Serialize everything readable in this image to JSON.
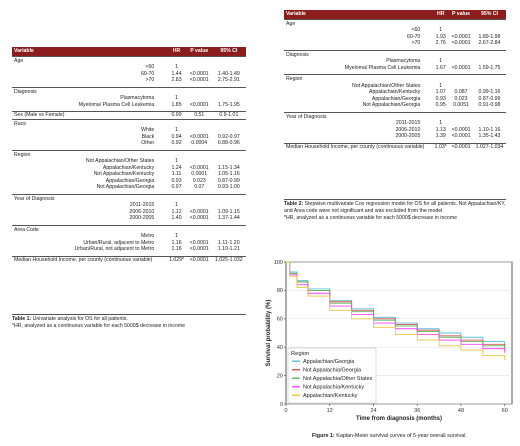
{
  "table1": {
    "headers": [
      "Variable",
      "HR",
      "P value",
      "95% CI"
    ],
    "sections": [
      {
        "title": "Age",
        "rows": [
          [
            "<60",
            "1",
            "",
            ""
          ],
          [
            "60-70",
            "1.44",
            "<0.0001",
            "1.40-1.49"
          ],
          [
            ">70",
            "2.83",
            "<0.0001",
            "2.75-2.91"
          ]
        ]
      },
      {
        "title": "Diagnosis",
        "rows": [
          [
            "Plasmacytoma",
            "1",
            "",
            ""
          ],
          [
            "Myeloma/ Plasma Cell Leukemia",
            "1.85",
            "<0.0001",
            "1.75-1.95"
          ]
        ]
      },
      {
        "title": "Sex (Male vs Female)",
        "title_values": [
          "0.99",
          "0.51",
          "0.9-1.01"
        ],
        "rows": []
      },
      {
        "title": "Race",
        "rows": [
          [
            "White",
            "1",
            "",
            ""
          ],
          [
            "Black",
            "0.94",
            "<0.0001",
            "0.92-0.97"
          ],
          [
            "Other",
            "0.92",
            "0.0004",
            "0.88-0.96"
          ]
        ]
      },
      {
        "title": "Region",
        "rows": [
          [
            "Not Appalachian/Other States",
            "1",
            "",
            ""
          ],
          [
            "Appalachian/Kentucky",
            "1.24",
            "<0.0001",
            "1.15-1.34"
          ],
          [
            "Not Appalachian/Kentucky",
            "1.11",
            "0.0001",
            "1.05-1.16"
          ],
          [
            "Appalachian/Georgia",
            "0.93",
            "0.023",
            "0.87-0.99"
          ],
          [
            "Not Appalachian/Georgia",
            "0.97",
            "0.07",
            "0.93-1.00"
          ]
        ]
      },
      {
        "title": "Year of Diagnosis",
        "rows": [
          [
            "2011-2015",
            "1",
            "",
            ""
          ],
          [
            "2006-2010",
            "1.12",
            "<0.0001",
            "1.09-1.15"
          ],
          [
            "2000-2005",
            "1.40",
            "<0.0001",
            "1.37-1.44"
          ]
        ]
      },
      {
        "title": "Area Code",
        "rows": [
          [
            "Metro",
            "1",
            "",
            ""
          ],
          [
            "Urban/Rural, adjacent to Metro",
            "1.16",
            "<0.0001",
            "1.11-1.20"
          ],
          [
            "Urban/Rural, not adjacent to Metro",
            "1.16",
            "<0.0001",
            "1.10-1.21"
          ]
        ]
      },
      {
        "title": "Median Household Income, per county (continuous variable)",
        "title_values": [
          "1.029*",
          "<0.0001",
          "1.025-1.032"
        ],
        "rows": []
      }
    ],
    "caption_label": "Table 1:",
    "caption_text": " Univariate analysis for OS for all patients.",
    "caption_note": "*HR, analyzed as a continuous variable for each 5000$ decrease in income"
  },
  "table2": {
    "headers": [
      "Variable",
      "HR",
      "P value",
      "95% CI"
    ],
    "sections": [
      {
        "title": "Age",
        "rows": [
          [
            "<60",
            "1",
            "",
            ""
          ],
          [
            "60-70",
            "1.93",
            "<0.0001",
            "1.89-1.98"
          ],
          [
            ">70",
            "2.76",
            "<0.0001",
            "2.67-2.84"
          ]
        ]
      },
      {
        "title": "Diagnosis",
        "rows": [
          [
            "Plasmacytoma",
            "1",
            "",
            ""
          ],
          [
            "Myeloma/ Plasma Cell Leukemia",
            "1.67",
            "<0.0001",
            "1.59-1.75"
          ]
        ]
      },
      {
        "title": "Region",
        "rows": [
          [
            "Not Appalachian/Other States",
            "1",
            "",
            ""
          ],
          [
            "Appalachian/Kentucky",
            "1.07",
            "0.087",
            "0.99-1.16"
          ],
          [
            "Appalachian/Georgia",
            "0.93",
            "0.023",
            "0.87-0.99"
          ],
          [
            "Not Appalachian/Georgia",
            "0.95",
            "0.0051",
            "0.91-0.98"
          ]
        ]
      },
      {
        "title": "Year of Diagnosis",
        "rows": [
          [
            "2011-2015",
            "1",
            "",
            ""
          ],
          [
            "2006-2010",
            "1.13",
            "<0.0001",
            "1.10-1.16"
          ],
          [
            "2000-2005",
            "1.39",
            "<0.0001",
            "1.35-1.43"
          ]
        ]
      },
      {
        "title": "Median Household Income, per county (continuous variable)",
        "title_values": [
          "1.03*",
          "<0.0001",
          "1.027-1.034"
        ],
        "rows": []
      }
    ],
    "caption_label": "Table 2:",
    "caption_text": " Stepwise multivariate Cox regression model for OS for all patients. Not Appalachian/KY, and Area code were not significant and was excluded from the model.",
    "caption_note": "*HR, analyzed as a continuous variable for each 5000$ decrease in income"
  },
  "figure": {
    "caption_label": "Figure 1:",
    "caption_text": " Kaplan-Meier survival curves of 5-year overall survival"
  },
  "chart_data": {
    "type": "line",
    "xlabel": "Time from diagnosis (months)",
    "ylabel": "Survival probability (%)",
    "xlim": [
      0,
      62
    ],
    "ylim": [
      0,
      100
    ],
    "xticks": [
      0,
      12,
      24,
      36,
      48,
      60
    ],
    "yticks": [
      0,
      20,
      40,
      60,
      80,
      100
    ],
    "legend_title": "Region",
    "legend_position": "bottom-left",
    "x": [
      0,
      1,
      3,
      6,
      12,
      18,
      24,
      30,
      36,
      42,
      48,
      54,
      60
    ],
    "series": [
      {
        "name": "Appalachian/Georgia",
        "color": "#5bc0de",
        "values": [
          100,
          93,
          87,
          81,
          73,
          67,
          61,
          57,
          53,
          50,
          47,
          44,
          41
        ]
      },
      {
        "name": "Not Appalachia/Georgia",
        "color": "#d9534f",
        "values": [
          100,
          92,
          86,
          80,
          72,
          66,
          60,
          56,
          52,
          48,
          45,
          42,
          39
        ]
      },
      {
        "name": "Not Appalachia/Other States",
        "color": "#5cb85c",
        "values": [
          100,
          92,
          86,
          80,
          71,
          65,
          59,
          55,
          51,
          47,
          44,
          41,
          38
        ]
      },
      {
        "name": "Not Appalachia/Kentucky",
        "color": "#ff44ff",
        "values": [
          100,
          91,
          84,
          78,
          69,
          63,
          57,
          53,
          49,
          45,
          42,
          39,
          36
        ]
      },
      {
        "name": "Appalachian/Kentucky",
        "color": "#e8c53a",
        "values": [
          100,
          90,
          82,
          76,
          66,
          60,
          54,
          49,
          45,
          41,
          38,
          34,
          31
        ]
      }
    ]
  }
}
